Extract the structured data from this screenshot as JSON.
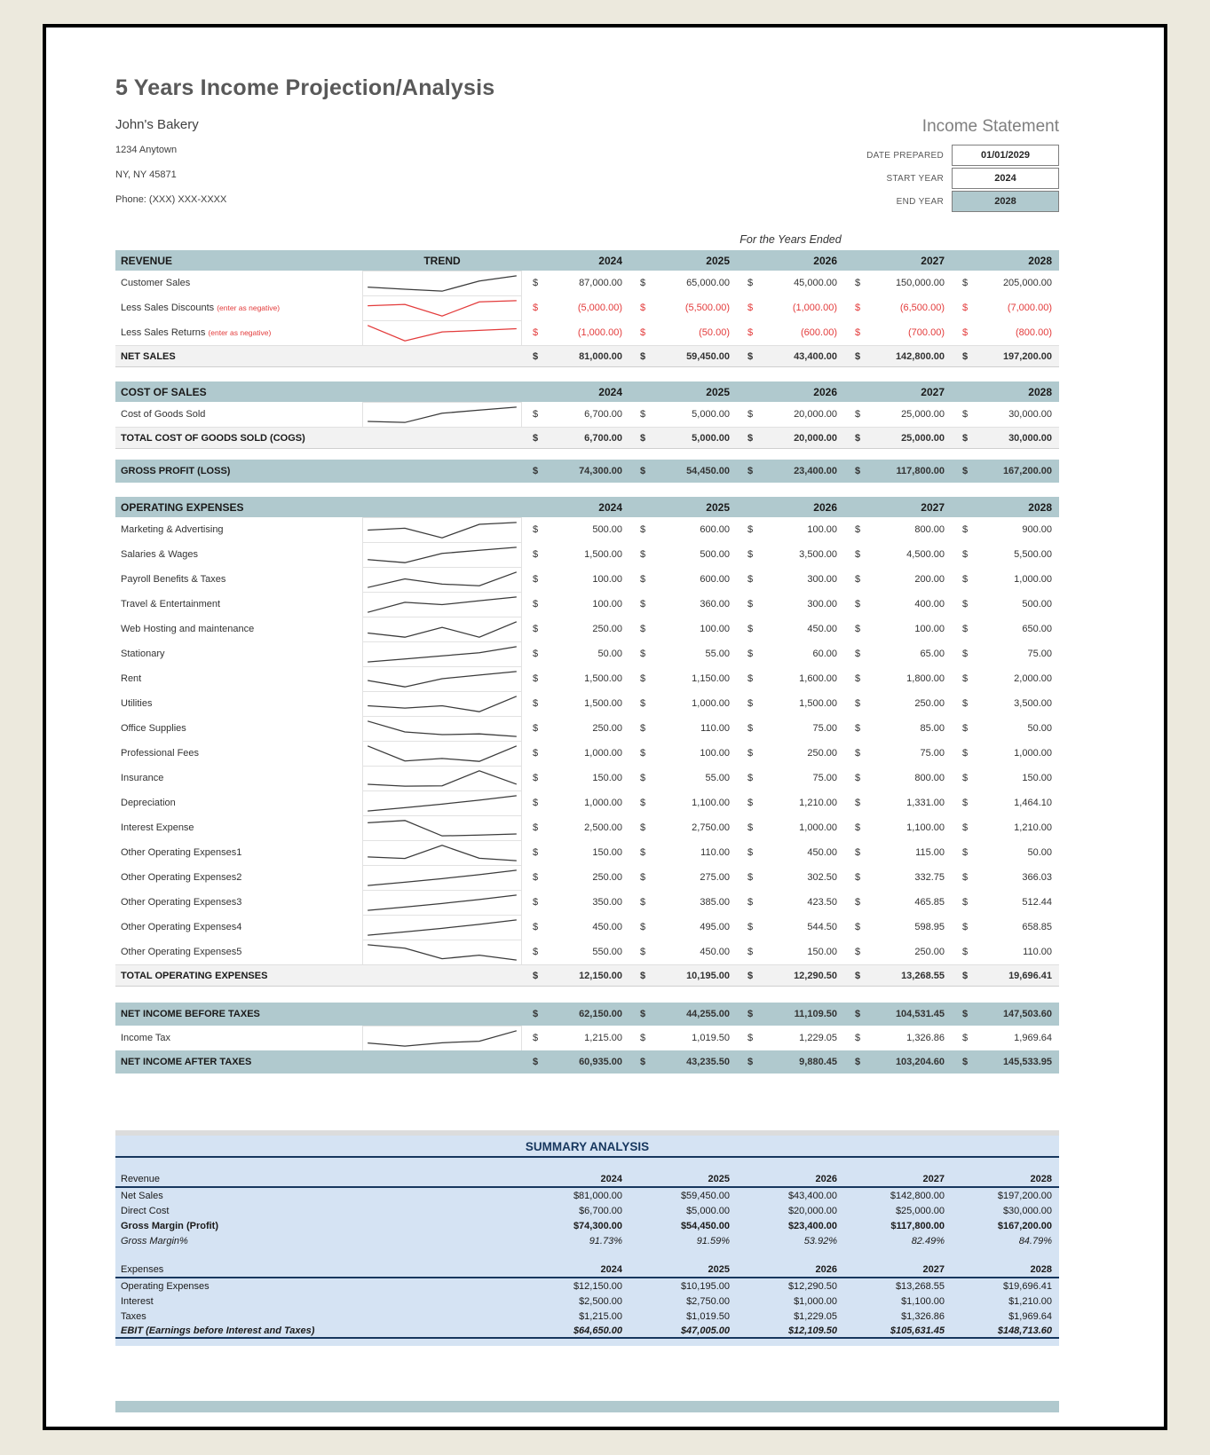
{
  "page": {
    "title": "5 Years Income Projection/Analysis",
    "company": {
      "name": "John's Bakery",
      "address1": "1234 Anytown",
      "address2": "NY, NY 45871",
      "phone": "Phone: (XXX) XXX-XXXX"
    },
    "statement_label": "Income Statement",
    "fields": [
      {
        "label": "DATE PREPARED",
        "value": "01/01/2029",
        "highlight": false
      },
      {
        "label": "START YEAR",
        "value": "2024",
        "highlight": false
      },
      {
        "label": "END YEAR",
        "value": "2028",
        "highlight": true
      }
    ],
    "years_caption": "For the Years Ended"
  },
  "years": [
    "2024",
    "2025",
    "2026",
    "2027",
    "2028"
  ],
  "colors": {
    "section_band": "#b0c9ce",
    "negative_red": "#e33b3b",
    "summary_blue": "#d5e3f3",
    "summary_navy": "#17375e",
    "sparkline_black": "#3b3b3b"
  },
  "table": [
    {
      "type": "band",
      "label": "REVENUE",
      "trend": "TREND",
      "years": true
    },
    {
      "type": "row",
      "label": "Customer Sales",
      "values": [
        87000,
        65000,
        45000,
        150000,
        205000
      ]
    },
    {
      "type": "row",
      "label": "Less Sales Discounts",
      "note": "(enter as negative)",
      "red": true,
      "values": [
        -5000,
        -5500,
        -1000,
        -6500,
        -7000
      ]
    },
    {
      "type": "row",
      "label": "Less Sales Returns",
      "note": "(enter as negative)",
      "red": true,
      "values": [
        -1000,
        -50,
        -600,
        -700,
        -800
      ]
    },
    {
      "type": "total",
      "label": "NET SALES",
      "values": [
        81000,
        59450,
        43400,
        142800,
        197200
      ]
    },
    {
      "type": "gap",
      "size": 16
    },
    {
      "type": "band",
      "label": "COST OF SALES",
      "trend": "",
      "years": true
    },
    {
      "type": "row",
      "label": "Cost of Goods Sold",
      "values": [
        6700,
        5000,
        20000,
        25000,
        30000
      ]
    },
    {
      "type": "total",
      "label": "TOTAL COST OF GOODS SOLD (COGS)",
      "values": [
        6700,
        5000,
        20000,
        25000,
        30000
      ]
    },
    {
      "type": "gap",
      "size": 12
    },
    {
      "type": "bandrow",
      "label": "GROSS PROFIT (LOSS)",
      "values": [
        74300,
        54450,
        23400,
        117800,
        167200
      ]
    },
    {
      "type": "gap",
      "size": 16
    },
    {
      "type": "band",
      "label": "OPERATING EXPENSES",
      "trend": "",
      "years": true
    },
    {
      "type": "row",
      "label": "Marketing & Advertising",
      "values": [
        500,
        600,
        100,
        800,
        900
      ]
    },
    {
      "type": "row",
      "label": "Salaries & Wages",
      "values": [
        1500,
        500,
        3500,
        4500,
        5500
      ]
    },
    {
      "type": "row",
      "label": "Payroll Benefits & Taxes",
      "values": [
        100,
        600,
        300,
        200,
        1000
      ]
    },
    {
      "type": "row",
      "label": "Travel & Entertainment",
      "values": [
        100,
        360,
        300,
        400,
        500
      ]
    },
    {
      "type": "row",
      "label": "Web Hosting and maintenance",
      "values": [
        250,
        100,
        450,
        100,
        650
      ]
    },
    {
      "type": "row",
      "label": "Stationary",
      "values": [
        50,
        55,
        60,
        65,
        75
      ]
    },
    {
      "type": "row",
      "label": "Rent",
      "values": [
        1500,
        1150,
        1600,
        1800,
        2000
      ]
    },
    {
      "type": "row",
      "label": "Utilities",
      "values": [
        1500,
        1000,
        1500,
        250,
        3500
      ]
    },
    {
      "type": "row",
      "label": "Office Supplies",
      "values": [
        250,
        110,
        75,
        85,
        50
      ]
    },
    {
      "type": "row",
      "label": "Professional Fees",
      "values": [
        1000,
        100,
        250,
        75,
        1000
      ]
    },
    {
      "type": "row",
      "label": "Insurance",
      "values": [
        150,
        55,
        75,
        800,
        150
      ]
    },
    {
      "type": "row",
      "label": "Depreciation",
      "values": [
        1000,
        1100,
        1210,
        1331,
        1464.1
      ]
    },
    {
      "type": "row",
      "label": "Interest Expense",
      "values": [
        2500,
        2750,
        1000,
        1100,
        1210
      ]
    },
    {
      "type": "row",
      "label": "Other Operating Expenses1",
      "values": [
        150,
        110,
        450,
        115,
        50
      ]
    },
    {
      "type": "row",
      "label": "Other Operating Expenses2",
      "values": [
        250,
        275,
        302.5,
        332.75,
        366.03
      ]
    },
    {
      "type": "row",
      "label": "Other Operating Expenses3",
      "values": [
        350,
        385,
        423.5,
        465.85,
        512.44
      ]
    },
    {
      "type": "row",
      "label": "Other Operating Expenses4",
      "values": [
        450,
        495,
        544.5,
        598.95,
        658.85
      ]
    },
    {
      "type": "row",
      "label": "Other Operating Expenses5",
      "values": [
        550,
        450,
        150,
        250,
        110
      ]
    },
    {
      "type": "total",
      "label": "TOTAL OPERATING EXPENSES",
      "values": [
        12150,
        10195,
        12290.5,
        13268.55,
        19696.41
      ]
    },
    {
      "type": "gap",
      "size": 18
    },
    {
      "type": "bandrow",
      "label": "NET INCOME BEFORE TAXES",
      "values": [
        62150,
        44255,
        11109.5,
        104531.45,
        147503.6
      ]
    },
    {
      "type": "row",
      "label": "Income Tax",
      "values": [
        1215,
        1019.5,
        1229.05,
        1326.86,
        1969.64
      ]
    },
    {
      "type": "bandrow",
      "label": "NET INCOME AFTER TAXES",
      "values": [
        60935,
        43235.5,
        9880.45,
        103204.6,
        145533.95
      ]
    }
  ],
  "summary": {
    "title": "SUMMARY ANALYSIS",
    "groups": [
      {
        "header": "Revenue",
        "rows": [
          {
            "label": "Net Sales",
            "values": [
              "$81,000.00",
              "$59,450.00",
              "$43,400.00",
              "$142,800.00",
              "$197,200.00"
            ]
          },
          {
            "label": "Direct Cost",
            "values": [
              "$6,700.00",
              "$5,000.00",
              "$20,000.00",
              "$25,000.00",
              "$30,000.00"
            ]
          },
          {
            "label": "Gross Margin (Profit)",
            "bold": true,
            "values": [
              "$74,300.00",
              "$54,450.00",
              "$23,400.00",
              "$117,800.00",
              "$167,200.00"
            ]
          },
          {
            "label": "Gross Margin%",
            "italic": true,
            "values": [
              "91.73%",
              "91.59%",
              "53.92%",
              "82.49%",
              "84.79%"
            ]
          }
        ]
      },
      {
        "header": "Expenses",
        "rows": [
          {
            "label": "Operating Expenses",
            "values": [
              "$12,150.00",
              "$10,195.00",
              "$12,290.50",
              "$13,268.55",
              "$19,696.41"
            ]
          },
          {
            "label": "Interest",
            "values": [
              "$2,500.00",
              "$2,750.00",
              "$1,000.00",
              "$1,100.00",
              "$1,210.00"
            ]
          },
          {
            "label": "Taxes",
            "values": [
              "$1,215.00",
              "$1,019.50",
              "$1,229.05",
              "$1,326.86",
              "$1,969.64"
            ]
          },
          {
            "label": "EBIT (Earnings before Interest and Taxes)",
            "bold": true,
            "italic": true,
            "ebit": true,
            "values": [
              "$64,650.00",
              "$47,005.00",
              "$12,109.50",
              "$105,631.45",
              "$148,713.60"
            ]
          }
        ]
      }
    ]
  }
}
